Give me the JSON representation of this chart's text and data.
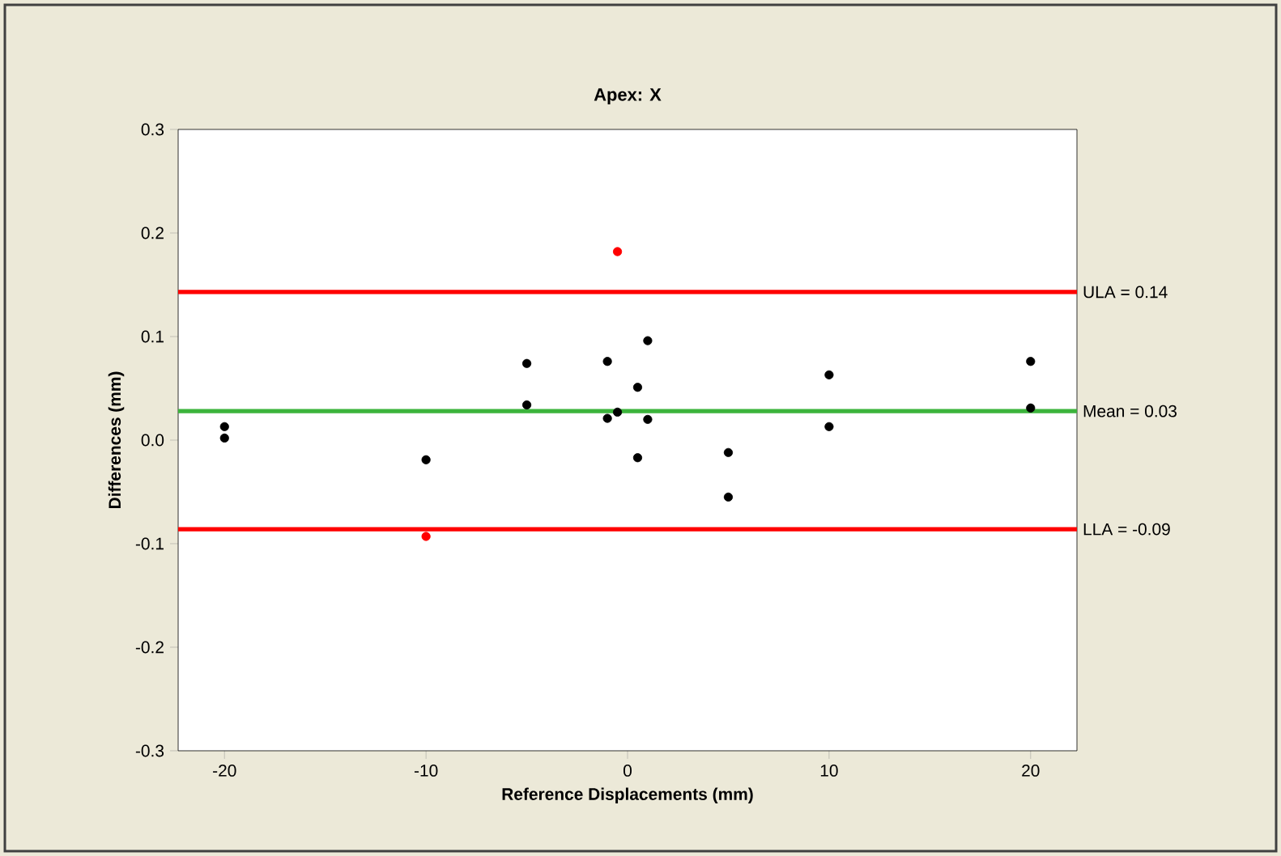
{
  "chart_data": {
    "type": "scatter",
    "title": "Apex: X",
    "xlabel": "Reference Displacements (mm)",
    "ylabel": "Differences (mm)",
    "xlim": [
      -22.3,
      22.3
    ],
    "ylim": [
      -0.3,
      0.3
    ],
    "xticks": [
      -20,
      -10,
      0,
      10,
      20
    ],
    "yticks": [
      0.3,
      0.2,
      0.1,
      {
        "value": 0,
        "label": "0.0"
      },
      -0.1,
      -0.2,
      -0.3
    ],
    "marker": "circle",
    "grid": false,
    "series": [
      {
        "color": "#000000",
        "x": [
          -20,
          -20,
          -10,
          -5,
          -5,
          -1,
          -1,
          -0.5,
          1,
          0.5,
          1,
          0.5,
          5,
          5,
          10,
          10,
          20,
          20
        ],
        "values": [
          0.013,
          0.002,
          -0.019,
          0.074,
          0.034,
          0.076,
          0.021,
          0.027,
          0.096,
          0.051,
          0.02,
          -0.017,
          -0.012,
          -0.055,
          0.063,
          0.013,
          0.076,
          0.031
        ]
      },
      {
        "color": "#ff0000",
        "x": [
          -10,
          -0.5
        ],
        "values": [
          -0.093,
          0.182
        ]
      }
    ],
    "ref_lines": [
      {
        "axis": "y",
        "value": 0.143,
        "label": "ULA = 0.14",
        "color": "#ff0000",
        "line_style": "solid"
      },
      {
        "axis": "y",
        "value": 0.028,
        "label": "Mean = 0.03",
        "color": "#3cb43c",
        "line_style": "solid"
      },
      {
        "axis": "y",
        "value": -0.086,
        "label": "LLA = -0.09",
        "color": "#ff0000",
        "line_style": "solid"
      }
    ]
  }
}
